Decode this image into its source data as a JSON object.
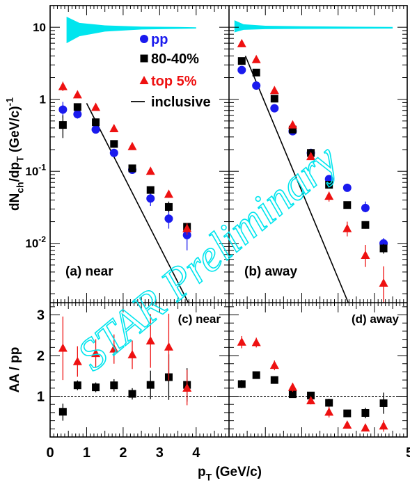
{
  "chart_data": {
    "type": "scatter",
    "xlabel": "p_T (GeV/c)",
    "x_ticks": [
      "0",
      "1",
      "2",
      "3",
      "4",
      "5"
    ],
    "xlim": [
      0,
      5
    ],
    "colors": {
      "pp": "#1a1aee",
      "80-40%": "#000000",
      "top 5%": "#ee1111",
      "inclusive": "#000000",
      "band": "#00e5ee"
    },
    "watermark": "STAR Preliminary",
    "legend": [
      {
        "key": "pp",
        "label": "pp",
        "marker": "circle"
      },
      {
        "key": "80-40%",
        "label": "80-40%",
        "marker": "square"
      },
      {
        "key": "top 5%",
        "label": "top 5%",
        "marker": "triangle"
      },
      {
        "key": "inclusive",
        "label": "inclusive",
        "marker": "line"
      }
    ],
    "top": {
      "ylabel": "dN_ch/dp_T (GeV/c)^-1",
      "yscale": "log",
      "ylim": [
        0.0015,
        20
      ],
      "y_ticks": [
        {
          "v": 10,
          "label": "10"
        },
        {
          "v": 1,
          "label": "1"
        },
        {
          "v": 0.1,
          "label": "10^-1"
        },
        {
          "v": 0.01,
          "label": "10^-2"
        }
      ]
    },
    "bottom": {
      "ylabel": "AA / pp",
      "ylim": [
        0,
        3.3
      ],
      "y_ticks": [
        "1",
        "2",
        "3"
      ],
      "reference": 1
    },
    "panels": [
      {
        "id": "a",
        "label": "(a) near",
        "xlim": [
          0,
          4.9
        ],
        "band": [
          [
            0.45,
            6,
            14
          ],
          [
            0.8,
            7.5,
            11.5
          ],
          [
            1.5,
            8.7,
            10.6
          ],
          [
            2.5,
            9.3,
            10.2
          ],
          [
            3.5,
            9.5,
            10.1
          ],
          [
            4.0,
            9.6,
            10.0
          ]
        ],
        "inclusive": [
          [
            1.0,
            0.88
          ],
          [
            4.2,
            0.00058
          ]
        ],
        "series": [
          {
            "key": "pp",
            "points": [
              [
                0.35,
                0.72,
                0.55,
                0.92
              ],
              [
                0.75,
                0.62,
                0.54,
                0.7
              ],
              [
                1.25,
                0.38,
                0.34,
                0.42
              ],
              [
                1.75,
                0.18,
                0.16,
                0.2
              ],
              [
                2.25,
                0.105,
                0.095,
                0.115
              ],
              [
                2.75,
                0.042,
                0.033,
                0.05
              ],
              [
                3.25,
                0.022,
                0.016,
                0.029
              ],
              [
                3.75,
                0.013,
                0.008,
                0.018
              ]
            ]
          },
          {
            "key": "80-40%",
            "points": [
              [
                0.35,
                0.44,
                0.29,
                0.6
              ],
              [
                0.75,
                0.78,
                0.7,
                0.86
              ],
              [
                1.25,
                0.48,
                0.43,
                0.53
              ],
              [
                1.75,
                0.24,
                0.22,
                0.26
              ],
              [
                2.25,
                0.11,
                0.1,
                0.12
              ],
              [
                2.75,
                0.055,
                0.05,
                0.061
              ],
              [
                3.25,
                0.032,
                0.027,
                0.038
              ],
              [
                3.75,
                0.017,
                0.015,
                0.019
              ]
            ]
          },
          {
            "key": "top 5%",
            "points": [
              [
                0.35,
                1.5,
                1.3,
                1.75
              ],
              [
                0.75,
                1.15,
                1.05,
                1.25
              ],
              [
                1.25,
                0.77,
                0.7,
                0.84
              ],
              [
                1.75,
                0.39,
                0.36,
                0.42
              ],
              [
                2.25,
                0.22,
                0.2,
                0.24
              ],
              [
                2.75,
                0.1,
                0.09,
                0.11
              ],
              [
                3.25,
                0.048,
                0.043,
                0.053
              ],
              [
                3.75,
                0.016,
                0.013,
                0.019
              ]
            ]
          }
        ],
        "ratios": [
          {
            "key": "80-40%",
            "points": [
              [
                0.35,
                0.62,
                0.4,
                0.82
              ],
              [
                0.75,
                1.27,
                1.15,
                1.39
              ],
              [
                1.25,
                1.22,
                1.1,
                1.34
              ],
              [
                1.75,
                1.27,
                1.12,
                1.42
              ],
              [
                2.25,
                1.06,
                0.92,
                1.2
              ],
              [
                2.75,
                1.28,
                0.93,
                1.63
              ],
              [
                3.25,
                1.47,
                0.91,
                2.03
              ],
              [
                3.75,
                1.28,
                0.87,
                1.69
              ]
            ]
          },
          {
            "key": "top 5%",
            "points": [
              [
                0.35,
                2.18,
                1.4,
                2.96
              ],
              [
                0.75,
                1.85,
                1.48,
                2.23
              ],
              [
                1.25,
                2.05,
                1.7,
                2.4
              ],
              [
                1.75,
                2.16,
                1.8,
                2.52
              ],
              [
                2.25,
                2.02,
                1.67,
                2.37
              ],
              [
                2.75,
                2.36,
                1.7,
                3.02
              ],
              [
                3.25,
                2.21,
                1.39,
                3.03
              ],
              [
                3.75,
                1.2,
                0.78,
                1.65
              ]
            ]
          }
        ]
      },
      {
        "id": "b",
        "label": "(b) away",
        "xlim": [
          0,
          4.9
        ],
        "band": [
          [
            0.15,
            8.5,
            12.5
          ],
          [
            0.4,
            9.2,
            11.0
          ],
          [
            1.0,
            9.4,
            10.5
          ],
          [
            2.0,
            9.5,
            10.3
          ],
          [
            4.5,
            9.6,
            10.1
          ]
        ],
        "inclusive": [
          [
            0.45,
            4.0
          ],
          [
            3.62,
            0.00058
          ]
        ],
        "series": [
          {
            "key": "pp",
            "points": [
              [
                0.35,
                2.55,
                2.38,
                2.72
              ],
              [
                0.75,
                1.55,
                1.44,
                1.66
              ],
              [
                1.25,
                0.75,
                0.69,
                0.81
              ],
              [
                1.75,
                0.36,
                0.33,
                0.39
              ],
              [
                2.25,
                0.18,
                0.165,
                0.195
              ],
              [
                2.75,
                0.078,
                0.071,
                0.085
              ],
              [
                3.25,
                0.059,
                0.053,
                0.065
              ],
              [
                3.75,
                0.031,
                0.027,
                0.038
              ],
              [
                4.25,
                0.01,
                0.0085,
                0.0118
              ]
            ]
          },
          {
            "key": "80-40%",
            "points": [
              [
                0.35,
                3.4,
                3.15,
                3.65
              ],
              [
                0.75,
                2.35,
                2.19,
                2.51
              ],
              [
                1.25,
                1.02,
                0.95,
                1.09
              ],
              [
                1.75,
                0.38,
                0.35,
                0.41
              ],
              [
                2.25,
                0.18,
                0.17,
                0.19
              ],
              [
                2.75,
                0.065,
                0.06,
                0.07
              ],
              [
                3.25,
                0.034,
                0.031,
                0.037
              ],
              [
                3.75,
                0.018,
                0.016,
                0.02
              ],
              [
                4.25,
                0.0085,
                0.0072,
                0.0098
              ]
            ]
          },
          {
            "key": "top 5%",
            "points": [
              [
                0.35,
                5.9,
                5.3,
                6.5
              ],
              [
                0.75,
                3.55,
                3.25,
                3.85
              ],
              [
                1.25,
                1.32,
                1.2,
                1.44
              ],
              [
                1.75,
                0.44,
                0.4,
                0.48
              ],
              [
                2.25,
                0.16,
                0.145,
                0.175
              ],
              [
                2.75,
                0.045,
                0.038,
                0.052
              ],
              [
                3.25,
                0.016,
                0.0125,
                0.02
              ],
              [
                3.75,
                0.0068,
                0.0047,
                0.0095
              ],
              [
                4.25,
                0.0028,
                0.0013,
                0.0048
              ]
            ]
          }
        ],
        "ratios": [
          {
            "key": "80-40%",
            "points": [
              [
                0.35,
                1.3,
                1.2,
                1.4
              ],
              [
                0.75,
                1.52,
                1.46,
                1.58
              ],
              [
                1.25,
                1.4,
                1.34,
                1.46
              ],
              [
                1.75,
                1.05,
                0.98,
                1.12
              ],
              [
                2.25,
                1.02,
                0.94,
                1.1
              ],
              [
                2.75,
                0.84,
                0.74,
                0.94
              ],
              [
                3.25,
                0.58,
                0.5,
                0.66
              ],
              [
                3.75,
                0.59,
                0.46,
                0.72
              ],
              [
                4.25,
                0.83,
                0.57,
                1.09
              ]
            ]
          },
          {
            "key": "top 5%",
            "points": [
              [
                0.35,
                2.33,
                2.18,
                2.48
              ],
              [
                0.75,
                2.32,
                2.2,
                2.44
              ],
              [
                1.25,
                1.76,
                1.64,
                1.88
              ],
              [
                1.75,
                1.22,
                1.11,
                1.33
              ],
              [
                2.25,
                0.89,
                0.8,
                0.98
              ],
              [
                2.75,
                0.61,
                0.48,
                0.74
              ],
              [
                3.25,
                0.29,
                0.22,
                0.36
              ],
              [
                3.75,
                0.22,
                0.15,
                0.29
              ],
              [
                4.25,
                0.27,
                0.13,
                0.41
              ]
            ]
          }
        ]
      }
    ],
    "ratio_panel_labels": [
      "(c) near",
      "(d) away"
    ]
  }
}
